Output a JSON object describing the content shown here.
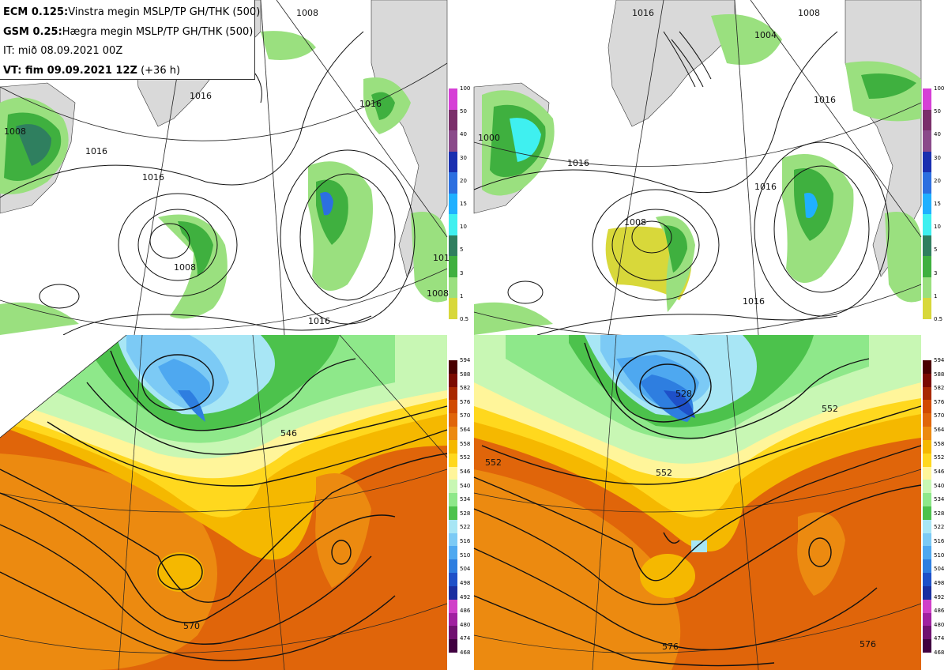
{
  "info": {
    "model1_name": "ECM 0.125:",
    "model1_desc": "Vinstra megin MSLP/TP GH/THK (500)",
    "model2_name": "GSM 0.25:",
    "model2_desc": "Hægra megin MSLP/TP GH/THK (500)",
    "init_time": "IT: mið 08.09.2021 00Z",
    "valid_label": "VT: fim 09.09.2021 12Z",
    "valid_offset": "(+36 h)"
  },
  "precip_colorbar": {
    "labels": [
      "100",
      "50",
      "40",
      "30",
      "20",
      "15",
      "10",
      "5",
      "3",
      "1",
      "0.5"
    ],
    "colors": [
      "#d63fd6",
      "#7a2f6a",
      "#8a4a8a",
      "#1a2fb0",
      "#2c6fe0",
      "#1fb0ff",
      "#3ff0f0",
      "#2f7f5f",
      "#3fb03f",
      "#9ae07f",
      "#d8d83a"
    ]
  },
  "gh_colorbar": {
    "labels": [
      "594",
      "588",
      "582",
      "576",
      "570",
      "564",
      "558",
      "552",
      "546",
      "540",
      "534",
      "528",
      "522",
      "516",
      "510",
      "504",
      "498",
      "492",
      "486",
      "480",
      "474",
      "468"
    ],
    "colors": [
      "#4a0000",
      "#7a0a00",
      "#a82800",
      "#d14a00",
      "#e0650a",
      "#ec8a10",
      "#f5b800",
      "#ffd81e",
      "#fff59a",
      "#c8f7b4",
      "#8ee88a",
      "#4cc24c",
      "#a8e6f5",
      "#7ccaf5",
      "#4ea8f0",
      "#2e7ee0",
      "#1e50c8",
      "#1a2ea0",
      "#d040c8",
      "#a020a0",
      "#701070",
      "#400040"
    ]
  },
  "mslp_labels_left": [
    "1008",
    "1016",
    "1016",
    "1016",
    "1008",
    "1016",
    "1016",
    "1008",
    "1008",
    "1016"
  ],
  "mslp_labels_right": [
    "1000",
    "1016",
    "1016",
    "1016",
    "1008",
    "1016",
    "1004",
    "1016",
    "1008"
  ],
  "gh_labels_left": [
    "546",
    "570"
  ],
  "gh_labels_right": [
    "552",
    "552",
    "552",
    "528",
    "576",
    "576"
  ]
}
